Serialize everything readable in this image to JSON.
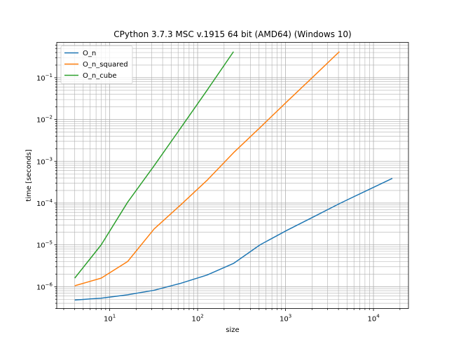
{
  "chart_data": {
    "type": "line",
    "title": "CPython 3.7.3 MSC v.1915 64 bit (AMD64) (Windows 10)",
    "xlabel": "size",
    "ylabel": "time [seconds]",
    "xscale": "log",
    "yscale": "log",
    "xlim": [
      2.5,
      25000
    ],
    "ylim": [
      3e-07,
      0.7
    ],
    "grid": "on (major and minor)",
    "legend_position": "top-left",
    "x_ticks": [
      {
        "value": 10,
        "base": "10",
        "exp": "1"
      },
      {
        "value": 100,
        "base": "10",
        "exp": "2"
      },
      {
        "value": 1000,
        "base": "10",
        "exp": "3"
      },
      {
        "value": 10000,
        "base": "10",
        "exp": "4"
      }
    ],
    "y_ticks": [
      {
        "value": 1e-06,
        "base": "10",
        "exp": "−6"
      },
      {
        "value": 1e-05,
        "base": "10",
        "exp": "−5"
      },
      {
        "value": 0.0001,
        "base": "10",
        "exp": "−4"
      },
      {
        "value": 0.001,
        "base": "10",
        "exp": "−3"
      },
      {
        "value": 0.01,
        "base": "10",
        "exp": "−2"
      },
      {
        "value": 0.1,
        "base": "10",
        "exp": "−1"
      }
    ],
    "series": [
      {
        "name": "O_n",
        "color": "#1f77b4",
        "x": [
          4,
          8,
          16,
          32,
          64,
          128,
          256,
          512,
          1024,
          2048,
          4096,
          8192,
          16384
        ],
        "y": [
          4.8e-07,
          5.3e-07,
          6.4e-07,
          8.2e-07,
          1.2e-06,
          1.9e-06,
          3.6e-06,
          1e-05,
          2.2e-05,
          4.6e-05,
          9.7e-05,
          0.000195,
          0.00039
        ]
      },
      {
        "name": "O_n_squared",
        "color": "#ff7f0e",
        "x": [
          4,
          8,
          16,
          32,
          64,
          128,
          256,
          512,
          1024,
          2048,
          4096
        ],
        "y": [
          1.05e-06,
          1.6e-06,
          4e-06,
          2.4e-05,
          9e-05,
          0.00035,
          0.0016,
          0.0064,
          0.026,
          0.104,
          0.42
        ]
      },
      {
        "name": "O_n_cube",
        "color": "#2ca02c",
        "x": [
          4,
          8,
          16,
          32,
          64,
          128,
          256
        ],
        "y": [
          1.6e-06,
          1e-05,
          0.000105,
          0.00078,
          0.0062,
          0.05,
          0.42
        ]
      }
    ]
  }
}
